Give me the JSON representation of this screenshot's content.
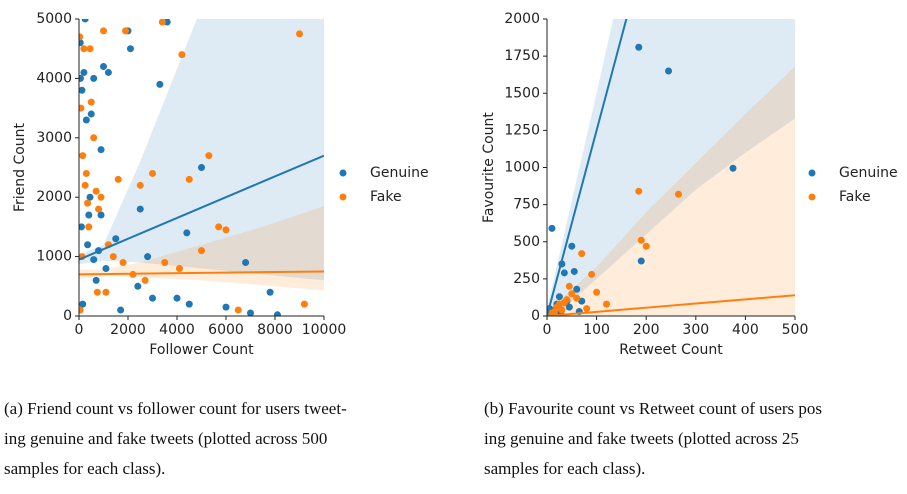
{
  "chart_data": [
    {
      "type": "scatter",
      "xlabel": "Follower Count",
      "ylabel": "Friend Count",
      "xlim": [
        0,
        10000
      ],
      "ylim": [
        0,
        5000
      ],
      "xticks": [
        0,
        2000,
        4000,
        6000,
        8000,
        10000
      ],
      "yticks": [
        0,
        1000,
        2000,
        3000,
        4000,
        5000
      ],
      "series": [
        {
          "name": "Genuine",
          "color": "#1f77b4",
          "x": [
            50,
            120,
            200,
            300,
            400,
            600,
            800,
            900,
            1000,
            1200,
            1500,
            2000,
            2100,
            2500,
            2800,
            3300,
            3600,
            4000,
            4400,
            5000,
            6000,
            6800,
            7000,
            7800,
            8100,
            100,
            250,
            500,
            700,
            1100,
            150,
            350,
            60,
            450,
            900,
            1700,
            2400,
            3000,
            4500,
            600
          ],
          "y": [
            4600,
            3800,
            4100,
            3300,
            1700,
            4000,
            1100,
            2800,
            4200,
            4100,
            1300,
            4800,
            4500,
            1800,
            1000,
            3900,
            4950,
            300,
            1400,
            2500,
            150,
            900,
            50,
            400,
            20,
            1500,
            5000,
            3400,
            600,
            800,
            200,
            1200,
            4000,
            2000,
            1700,
            100,
            500,
            300,
            200,
            950
          ],
          "fit": {
            "x": [
              0,
              1000,
              2500,
              5000,
              7500,
              10000
            ],
            "y": [
              950,
              1125,
              1388,
              1825,
              2263,
              2700
            ],
            "lower": [
              870,
              930,
              900,
              800,
              700,
              600
            ],
            "upper": [
              1030,
              1200,
              2600,
              5200,
              7800,
              10400
            ]
          }
        },
        {
          "name": "Fake",
          "color": "#ff7f0e",
          "x": [
            30,
            80,
            150,
            200,
            300,
            400,
            500,
            700,
            900,
            1000,
            1200,
            1600,
            1900,
            2500,
            3000,
            3400,
            4200,
            4500,
            5000,
            5300,
            5700,
            6000,
            9000,
            9200,
            250,
            600,
            800,
            1400,
            2200,
            3500,
            50,
            120,
            450,
            1100,
            2700,
            4100,
            6500,
            350,
            750,
            1800
          ],
          "y": [
            4700,
            3500,
            2700,
            4500,
            2400,
            1500,
            3600,
            2100,
            2000,
            4800,
            1200,
            2300,
            4800,
            2200,
            2400,
            4950,
            4400,
            2300,
            1100,
            2700,
            1500,
            1450,
            4750,
            200,
            2200,
            3000,
            1800,
            1000,
            700,
            900,
            100,
            1000,
            4500,
            400,
            600,
            800,
            100,
            1900,
            400,
            900
          ],
          "fit": {
            "x": [
              0,
              1000,
              2500,
              5000,
              7500,
              10000
            ],
            "y": [
              700,
              705,
              713,
              725,
              738,
              750
            ],
            "lower": [
              620,
              680,
              650,
              600,
              520,
              430
            ],
            "upper": [
              780,
              780,
              900,
              1200,
              1500,
              1850
            ]
          }
        }
      ]
    },
    {
      "type": "scatter",
      "xlabel": "Retweet Count",
      "ylabel": "Favourite Count",
      "xlim": [
        0,
        500
      ],
      "ylim": [
        0,
        2000
      ],
      "xticks": [
        0,
        100,
        200,
        300,
        400,
        500
      ],
      "yticks": [
        0,
        250,
        500,
        750,
        1000,
        1250,
        1500,
        1750,
        2000
      ],
      "series": [
        {
          "name": "Genuine",
          "color": "#1f77b4",
          "x": [
            5,
            10,
            20,
            25,
            30,
            35,
            40,
            50,
            55,
            60,
            70,
            185,
            190,
            245,
            375,
            15,
            45,
            65,
            28,
            8
          ],
          "y": [
            50,
            590,
            80,
            130,
            350,
            290,
            100,
            470,
            300,
            180,
            100,
            1810,
            370,
            1650,
            995,
            40,
            60,
            30,
            20,
            10
          ],
          "fit": {
            "x": [
              0,
              100,
              200,
              300,
              400,
              500
            ],
            "y": [
              0,
              1250,
              2500,
              3750,
              5000,
              6250
            ],
            "lower": [
              -50,
              250,
              550,
              850,
              1100,
              1330
            ],
            "upper": [
              50,
              1500,
              3000,
              4500,
              6000,
              7500
            ]
          }
        },
        {
          "name": "Fake",
          "color": "#ff7f0e",
          "x": [
            5,
            10,
            20,
            25,
            30,
            40,
            50,
            60,
            70,
            90,
            100,
            120,
            185,
            190,
            200,
            265,
            15,
            35,
            45,
            80
          ],
          "y": [
            20,
            10,
            60,
            80,
            40,
            110,
            150,
            120,
            420,
            280,
            160,
            80,
            840,
            510,
            470,
            820,
            30,
            90,
            200,
            50
          ],
          "fit": {
            "x": [
              0,
              100,
              200,
              300,
              400,
              500
            ],
            "y": [
              0,
              28,
              56,
              84,
              112,
              140
            ],
            "lower": [
              -30,
              -30,
              -40,
              -50,
              -60,
              -80
            ],
            "upper": [
              30,
              330,
              700,
              1030,
              1360,
              1680
            ]
          }
        }
      ]
    }
  ],
  "captions": [
    [
      "(a)  Friend count vs follower count for users tweet-",
      "ing genuine and fake tweets (plotted across 500",
      "samples for each class)."
    ],
    [
      "(b)  Favourite count vs Retweet count of users pos",
      "ing genuine and fake tweets (plotted across 25",
      "samples for each class)."
    ]
  ]
}
